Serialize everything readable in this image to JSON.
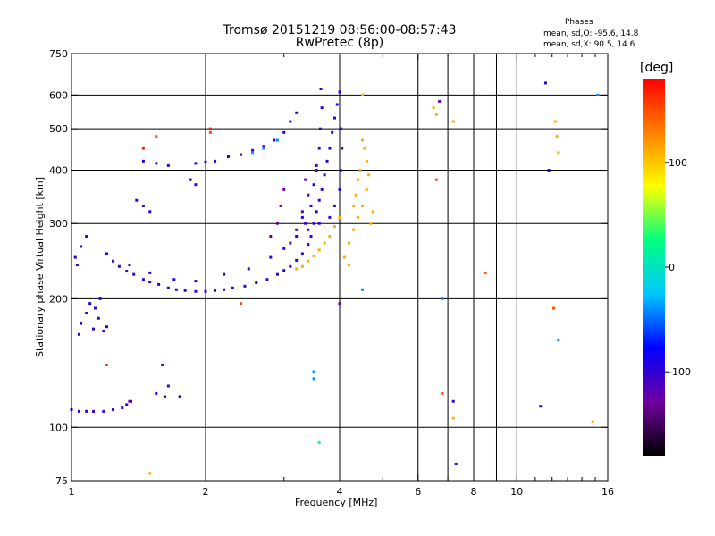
{
  "chart_data": {
    "type": "scatter",
    "title": "Tromsø 20151219 08:56:00-08:57:43",
    "subtitle": "RwPretec (8p)",
    "xlabel": "Frequency [MHz]",
    "ylabel": "Stationary phase Virtual Height [km]",
    "x_scale": "log",
    "y_scale": "log",
    "xlim": [
      1,
      16
    ],
    "ylim": [
      75,
      750
    ],
    "x_ticks": [
      1,
      2,
      4,
      6,
      8,
      10,
      16
    ],
    "x_minor_ticks": [
      3,
      5,
      7,
      9,
      11,
      12,
      13,
      14,
      15
    ],
    "y_ticks": [
      75,
      100,
      200,
      300,
      400,
      500,
      600,
      750
    ],
    "grid": true,
    "x_gridlines": [
      2,
      4,
      6,
      7,
      8,
      9,
      10
    ],
    "y_gridlines": [
      100,
      200,
      300,
      400,
      500,
      600
    ],
    "legend_placement": "top-right",
    "phase_stats": {
      "heading": "Phases",
      "o_line": "mean, sd,O:  -95.6, 14.8",
      "x_line": "mean, sd,X:  90.5, 14.6"
    },
    "colorbar": {
      "label": "[deg]",
      "tick_labels": [
        "100",
        "0",
        "-100"
      ],
      "tick_values": [
        100,
        0,
        -100
      ],
      "range": [
        -180,
        180
      ],
      "colors": [
        "#000000",
        "#7000a0",
        "#0000ff",
        "#00c8ff",
        "#00ff80",
        "#ffff00",
        "#ff8000",
        "#ff0000"
      ]
    },
    "series": [
      {
        "phase": -100,
        "points": [
          [
            1.0,
            110
          ],
          [
            1.04,
            109
          ],
          [
            1.08,
            109
          ],
          [
            1.12,
            109
          ],
          [
            1.18,
            109
          ],
          [
            1.24,
            110
          ],
          [
            1.3,
            111
          ],
          [
            1.33,
            113
          ],
          [
            1.36,
            115
          ],
          [
            1.02,
            250
          ],
          [
            1.05,
            265
          ],
          [
            1.08,
            280
          ],
          [
            1.03,
            240
          ],
          [
            1.1,
            195
          ],
          [
            1.13,
            190
          ],
          [
            1.08,
            185
          ],
          [
            1.15,
            180
          ],
          [
            1.05,
            175
          ],
          [
            1.12,
            170
          ],
          [
            1.18,
            168
          ],
          [
            1.04,
            165
          ],
          [
            1.2,
            172
          ],
          [
            1.16,
            200
          ],
          [
            1.2,
            255
          ],
          [
            1.24,
            245
          ],
          [
            1.28,
            238
          ],
          [
            1.33,
            232
          ],
          [
            1.38,
            228
          ],
          [
            1.45,
            222
          ],
          [
            1.5,
            219
          ],
          [
            1.57,
            216
          ],
          [
            1.65,
            212
          ],
          [
            1.72,
            210
          ],
          [
            1.8,
            209
          ],
          [
            1.9,
            208
          ],
          [
            2.0,
            208
          ],
          [
            2.1,
            209
          ],
          [
            2.2,
            210
          ],
          [
            2.3,
            212
          ],
          [
            2.45,
            214
          ],
          [
            2.6,
            218
          ],
          [
            2.75,
            222
          ],
          [
            2.9,
            228
          ],
          [
            3.0,
            233
          ],
          [
            3.1,
            238
          ],
          [
            3.2,
            246
          ],
          [
            3.3,
            255
          ],
          [
            3.4,
            268
          ],
          [
            3.45,
            280
          ],
          [
            3.5,
            300
          ],
          [
            3.55,
            320
          ],
          [
            3.6,
            340
          ],
          [
            3.65,
            360
          ],
          [
            3.7,
            390
          ],
          [
            3.75,
            420
          ],
          [
            3.8,
            450
          ],
          [
            3.85,
            490
          ],
          [
            3.9,
            530
          ],
          [
            3.95,
            570
          ],
          [
            4.0,
            610
          ],
          [
            1.35,
            240
          ],
          [
            1.5,
            230
          ],
          [
            1.7,
            222
          ],
          [
            1.9,
            220
          ],
          [
            2.2,
            228
          ],
          [
            2.5,
            235
          ],
          [
            2.8,
            250
          ],
          [
            3.0,
            262
          ],
          [
            3.2,
            280
          ],
          [
            3.35,
            300
          ],
          [
            3.45,
            330
          ],
          [
            3.5,
            370
          ],
          [
            3.55,
            410
          ],
          [
            3.6,
            450
          ],
          [
            3.62,
            500
          ],
          [
            3.65,
            560
          ],
          [
            3.63,
            620
          ],
          [
            1.45,
            420
          ],
          [
            1.55,
            415
          ],
          [
            1.65,
            410
          ],
          [
            1.9,
            415
          ],
          [
            2.0,
            418
          ],
          [
            2.1,
            420
          ],
          [
            2.25,
            430
          ],
          [
            2.4,
            435
          ],
          [
            2.55,
            445
          ],
          [
            2.7,
            455
          ],
          [
            2.85,
            470
          ],
          [
            3.0,
            490
          ],
          [
            3.1,
            520
          ],
          [
            3.2,
            545
          ],
          [
            1.4,
            340
          ],
          [
            1.45,
            330
          ],
          [
            1.5,
            320
          ],
          [
            1.85,
            380
          ],
          [
            1.9,
            370
          ],
          [
            1.6,
            140
          ],
          [
            1.65,
            125
          ],
          [
            1.62,
            118
          ],
          [
            1.55,
            120
          ],
          [
            1.75,
            118
          ],
          [
            3.3,
            310
          ],
          [
            3.4,
            290
          ],
          [
            3.6,
            300
          ],
          [
            3.8,
            310
          ],
          [
            3.9,
            330
          ],
          [
            4.0,
            360
          ],
          [
            4.02,
            400
          ],
          [
            4.05,
            450
          ],
          [
            4.03,
            500
          ],
          [
            7.2,
            115
          ],
          [
            7.3,
            82
          ],
          [
            11.3,
            112
          ],
          [
            11.8,
            400
          ],
          [
            11.6,
            640
          ]
        ]
      },
      {
        "phase": -130,
        "points": [
          [
            3.1,
            270
          ],
          [
            3.2,
            290
          ],
          [
            3.3,
            320
          ],
          [
            3.4,
            350
          ],
          [
            3.35,
            380
          ],
          [
            2.9,
            300
          ],
          [
            2.95,
            330
          ],
          [
            3.0,
            360
          ],
          [
            2.8,
            280
          ],
          [
            3.55,
            400
          ],
          [
            4.0,
            195
          ],
          [
            6.7,
            580
          ],
          [
            1.35,
            115
          ]
        ]
      },
      {
        "phase": -40,
        "points": [
          [
            2.55,
            440
          ],
          [
            2.7,
            450
          ],
          [
            2.9,
            470
          ],
          [
            3.5,
            130
          ],
          [
            3.5,
            135
          ],
          [
            6.8,
            200
          ],
          [
            4.5,
            210
          ],
          [
            12.4,
            160
          ],
          [
            15.2,
            600
          ]
        ]
      },
      {
        "phase": 110,
        "points": [
          [
            3.2,
            235
          ],
          [
            3.3,
            238
          ],
          [
            3.4,
            245
          ],
          [
            3.5,
            252
          ],
          [
            3.6,
            260
          ],
          [
            3.7,
            270
          ],
          [
            3.8,
            280
          ],
          [
            3.9,
            295
          ],
          [
            4.0,
            310
          ],
          [
            4.2,
            270
          ],
          [
            4.3,
            290
          ],
          [
            4.4,
            310
          ],
          [
            4.5,
            330
          ],
          [
            4.6,
            360
          ],
          [
            4.65,
            390
          ],
          [
            4.6,
            420
          ],
          [
            4.55,
            450
          ],
          [
            4.5,
            470
          ],
          [
            4.3,
            330
          ],
          [
            4.35,
            350
          ],
          [
            4.4,
            380
          ],
          [
            4.45,
            400
          ],
          [
            4.7,
            300
          ],
          [
            4.75,
            320
          ],
          [
            4.1,
            250
          ],
          [
            4.2,
            240
          ],
          [
            6.5,
            560
          ],
          [
            6.6,
            540
          ],
          [
            7.2,
            520
          ],
          [
            7.2,
            105
          ],
          [
            12.2,
            520
          ],
          [
            12.3,
            480
          ],
          [
            12.4,
            440
          ],
          [
            14.8,
            103
          ],
          [
            1.5,
            78
          ],
          [
            4.5,
            600
          ]
        ]
      },
      {
        "phase": 150,
        "points": [
          [
            1.55,
            480
          ],
          [
            2.05,
            490
          ],
          [
            6.6,
            380
          ],
          [
            8.5,
            230
          ],
          [
            12.1,
            190
          ],
          [
            2.4,
            195
          ],
          [
            6.8,
            120
          ],
          [
            1.2,
            140
          ]
        ]
      },
      {
        "phase": 30,
        "points": [
          [
            3.6,
            92
          ]
        ]
      },
      {
        "phase": 170,
        "points": [
          [
            2.05,
            500
          ],
          [
            1.45,
            450
          ]
        ]
      }
    ]
  }
}
